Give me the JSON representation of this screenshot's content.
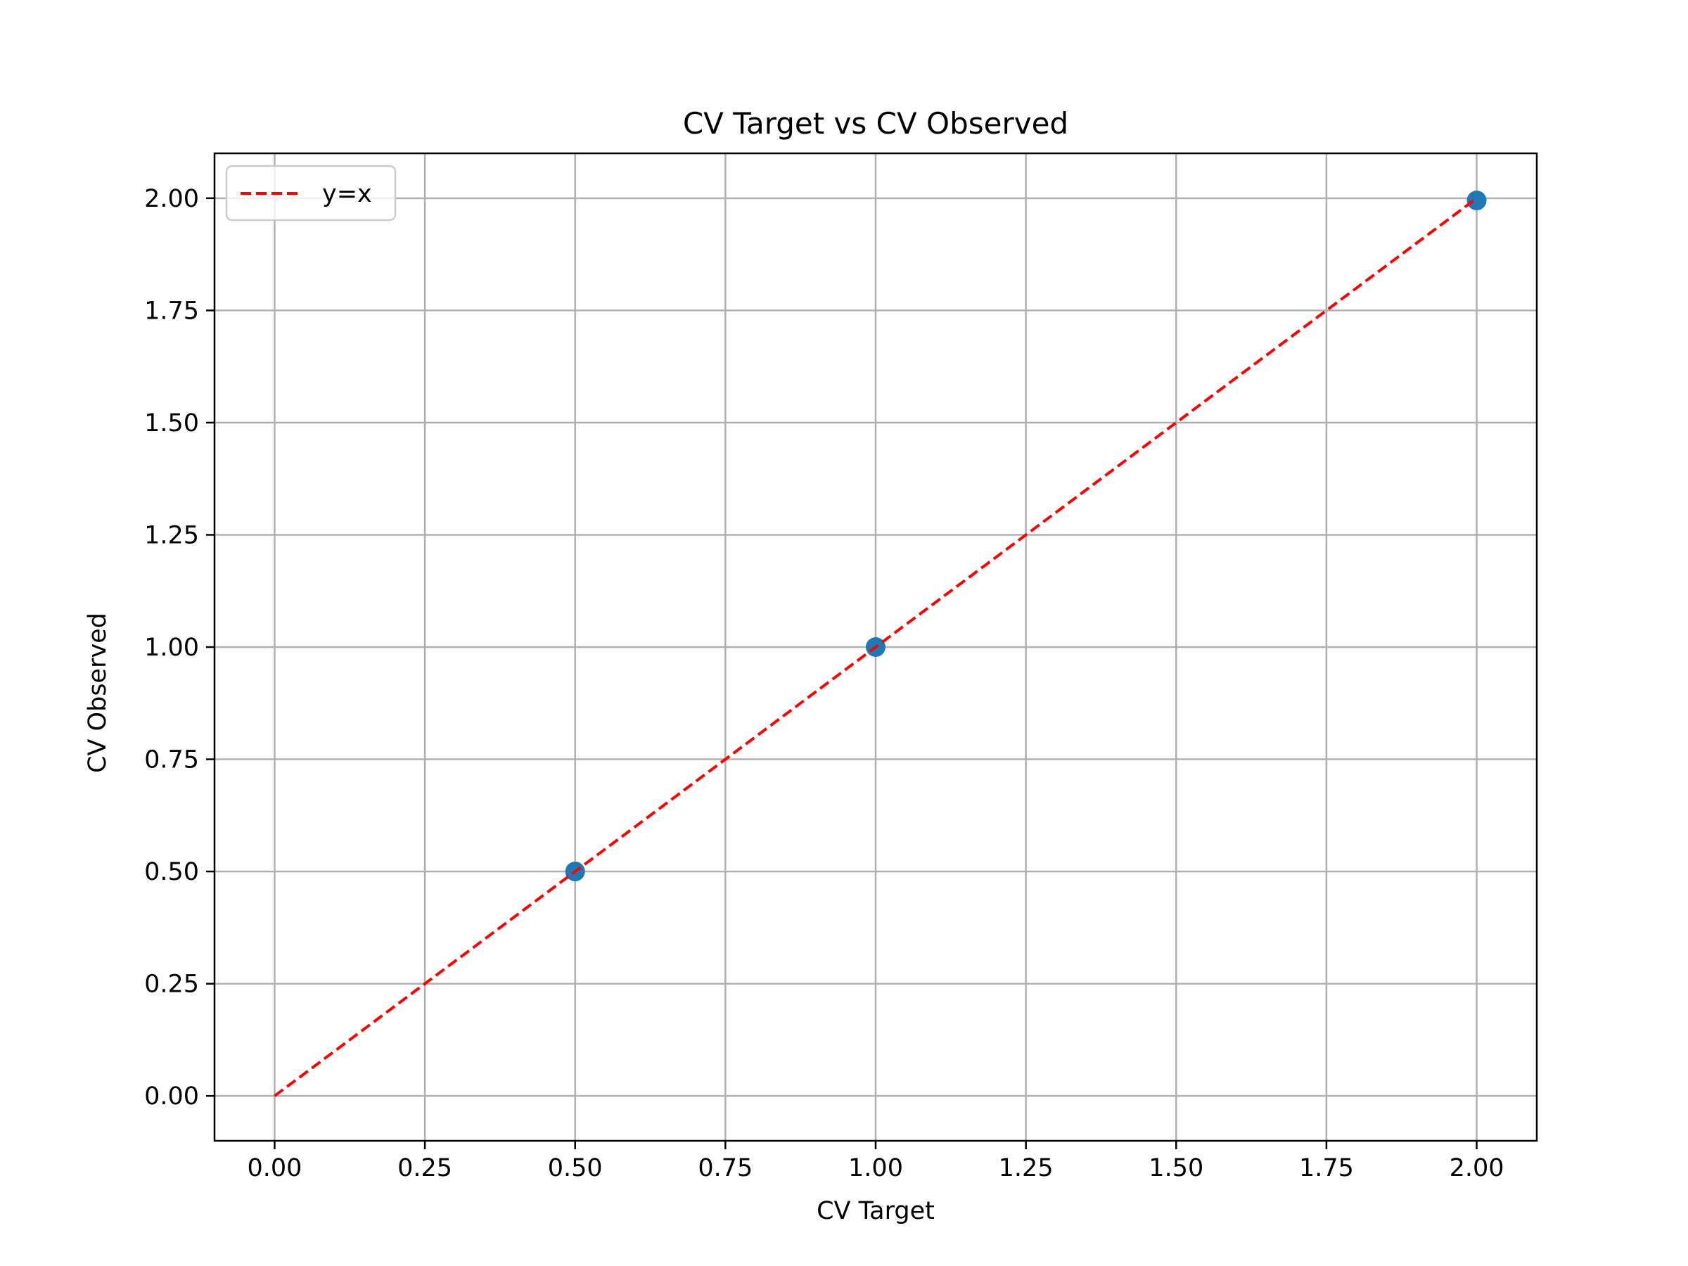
{
  "chart_data": {
    "type": "scatter",
    "title": "CV Target vs CV Observed",
    "xlabel": "CV Target",
    "ylabel": "CV Observed",
    "xlim": [
      -0.1,
      2.1
    ],
    "ylim": [
      -0.1,
      2.1
    ],
    "xticks": [
      0.0,
      0.25,
      0.5,
      0.75,
      1.0,
      1.25,
      1.5,
      1.75,
      2.0
    ],
    "yticks": [
      0.0,
      0.25,
      0.5,
      0.75,
      1.0,
      1.25,
      1.5,
      1.75,
      2.0
    ],
    "xtick_labels": [
      "0.00",
      "0.25",
      "0.50",
      "0.75",
      "1.00",
      "1.25",
      "1.50",
      "1.75",
      "2.00"
    ],
    "ytick_labels": [
      "0.00",
      "0.25",
      "0.50",
      "0.75",
      "1.00",
      "1.25",
      "1.50",
      "1.75",
      "2.00"
    ],
    "grid": true,
    "legend_position": "top-left",
    "scatter": {
      "x": [
        0.5,
        1.0,
        2.0
      ],
      "y": [
        0.5,
        1.0,
        1.995
      ],
      "color": "#1f77b4"
    },
    "reference_line": {
      "name": "y=x",
      "x": [
        0.0,
        2.0
      ],
      "y": [
        0.0,
        2.0
      ],
      "color": "#ff0000",
      "style": "dashed"
    }
  }
}
